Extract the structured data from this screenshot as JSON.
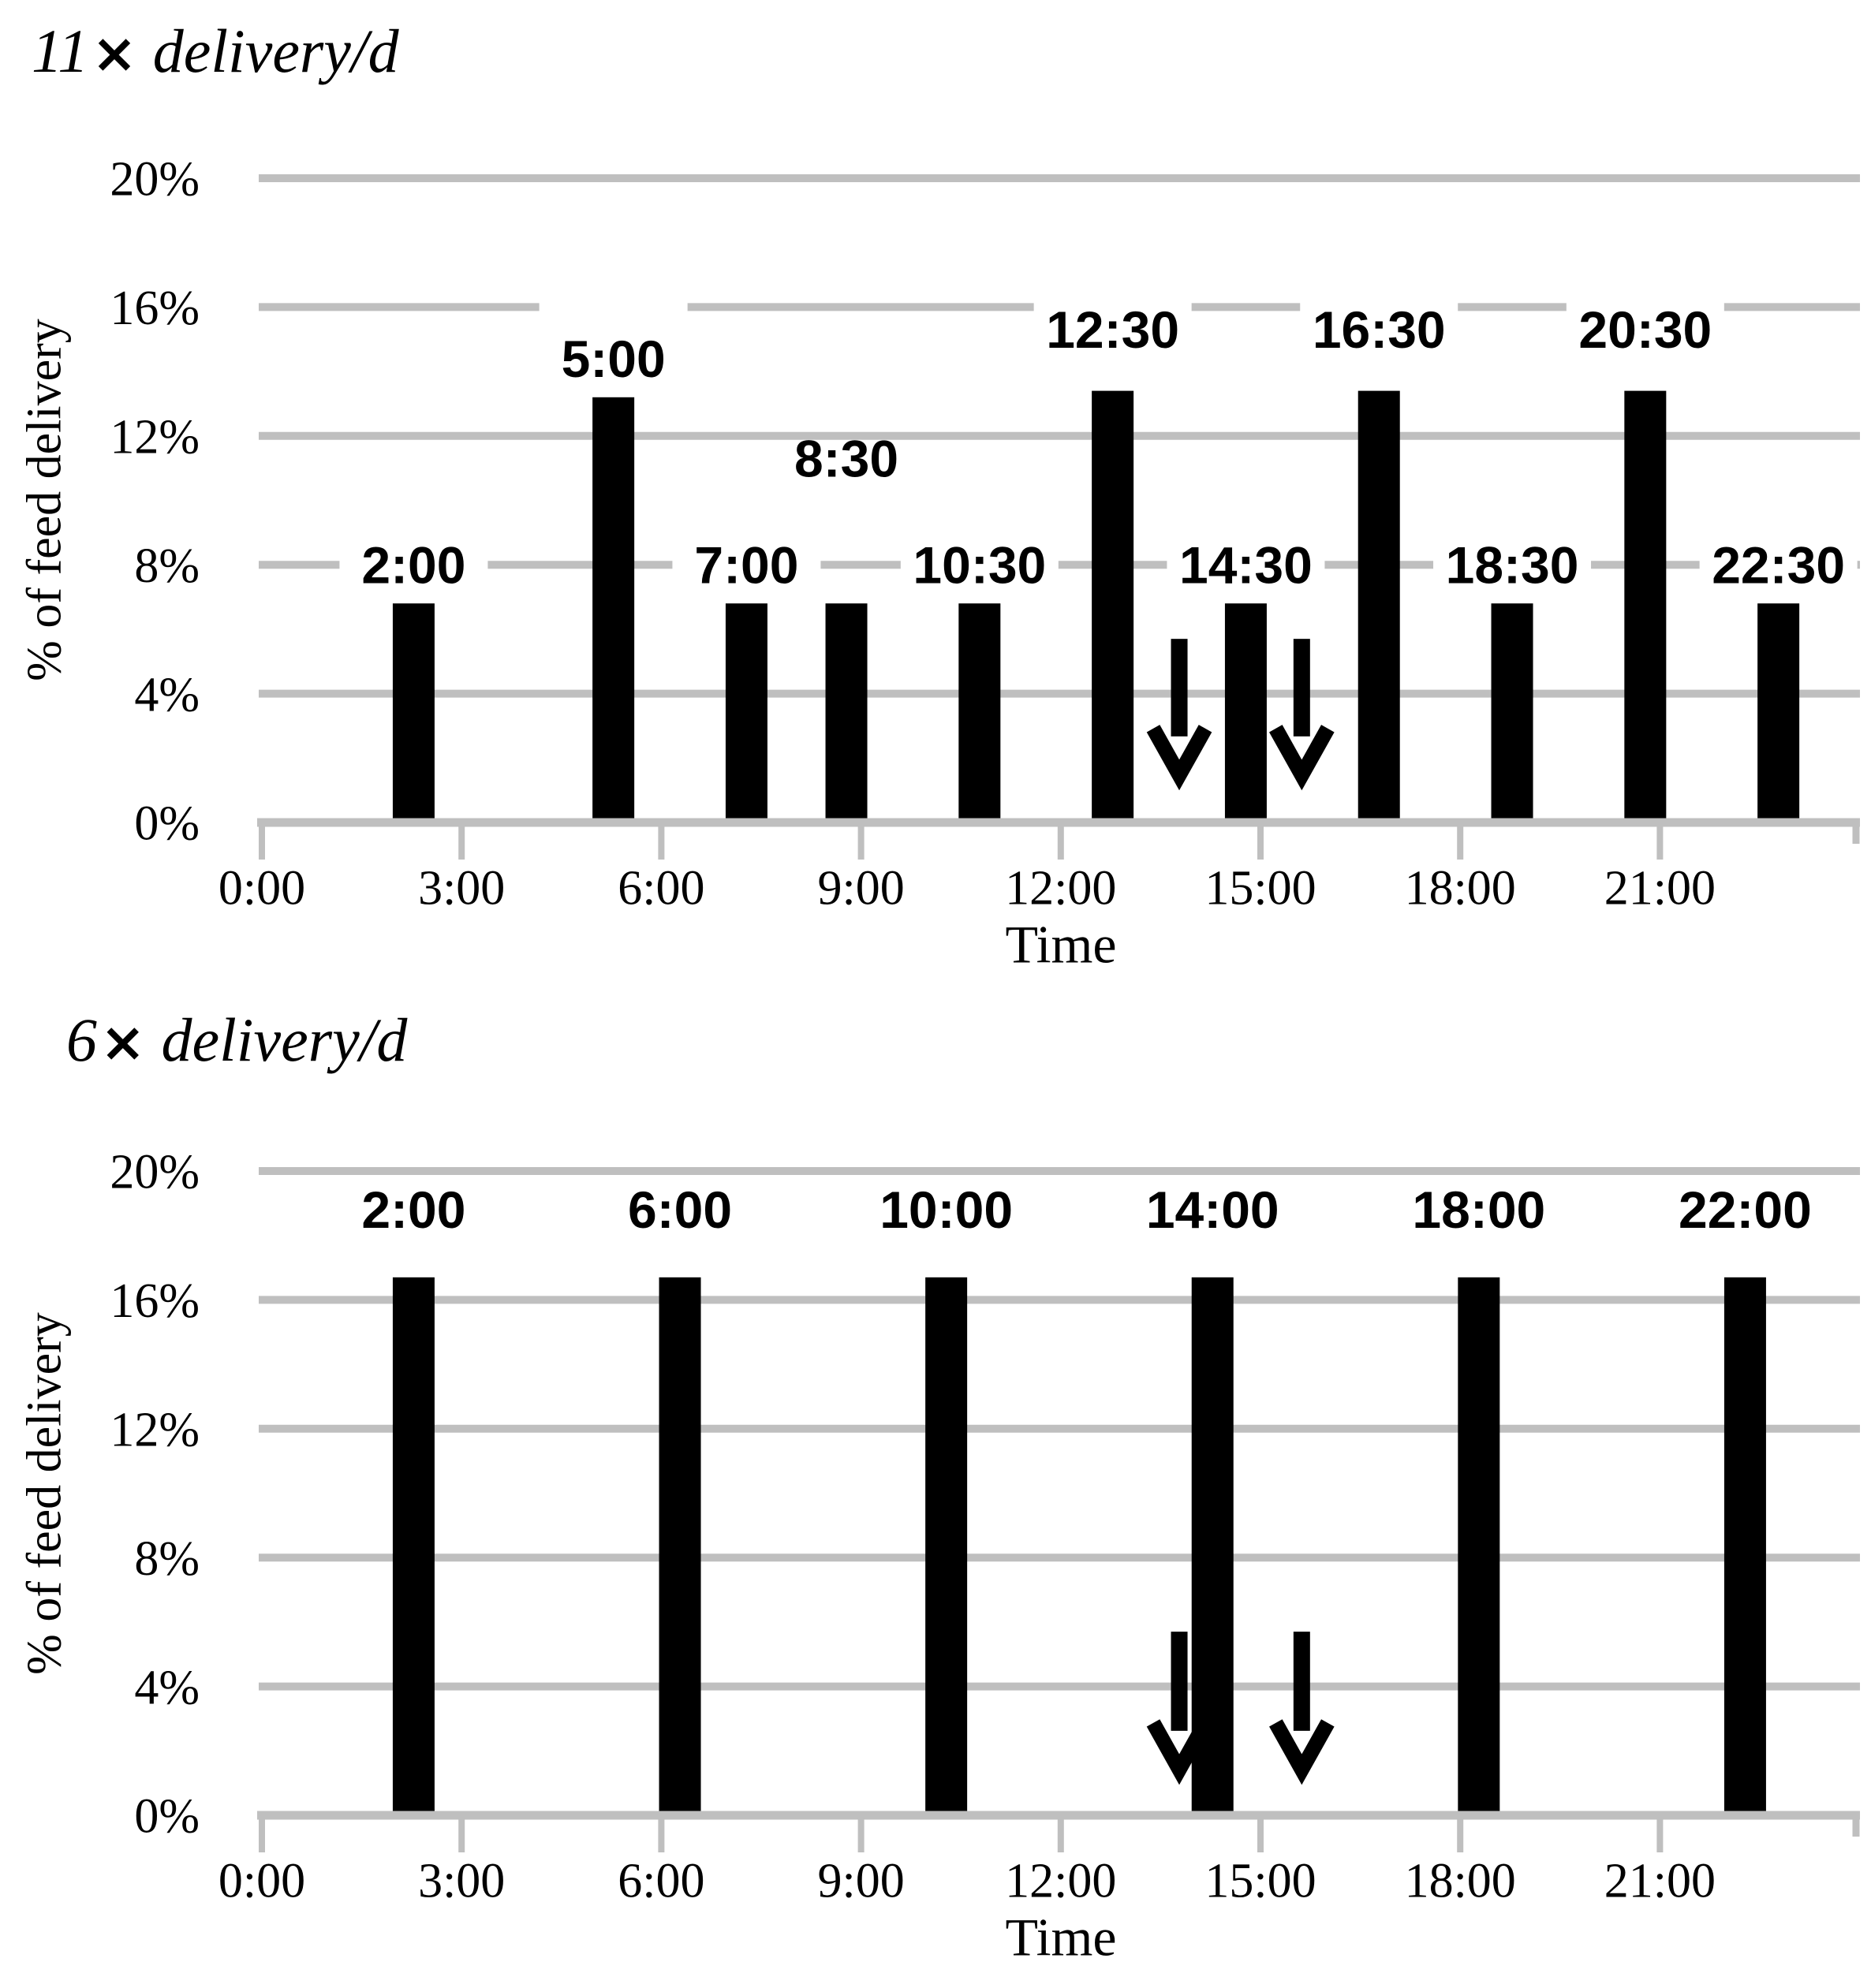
{
  "colors": {
    "bar": "#000000",
    "grid": "#bfbfbf",
    "text": "#000000",
    "background": "#ffffff"
  },
  "chart_data": [
    {
      "type": "bar",
      "title": {
        "number": "11",
        "times": "×",
        "text": "delivery/d"
      },
      "ylabel": "% of feed delivery",
      "xlabel": "Time",
      "ylim": [
        0,
        20
      ],
      "xlim_hours": [
        0,
        24
      ],
      "grid": true,
      "legend": null,
      "ytick_pcts": [
        0,
        4,
        8,
        12,
        16,
        20
      ],
      "ytick_labels": [
        "0%",
        "4%",
        "8%",
        "12%",
        "16%",
        "20%"
      ],
      "xticks": [
        {
          "hour": 0,
          "label": "0:00"
        },
        {
          "hour": 3,
          "label": "3:00"
        },
        {
          "hour": 6,
          "label": "6:00"
        },
        {
          "hour": 9,
          "label": "9:00"
        },
        {
          "hour": 12,
          "label": "12:00"
        },
        {
          "hour": 15,
          "label": "15:00"
        },
        {
          "hour": 18,
          "label": "18:00"
        },
        {
          "hour": 21,
          "label": "21:00"
        }
      ],
      "bars": [
        {
          "label": "2:00",
          "hour": 2,
          "value": 6.8,
          "label_pct": 8.0,
          "gap_line_pct": 8
        },
        {
          "label": "5:00",
          "hour": 5,
          "value": 13.2,
          "label_pct": 14.4,
          "gap_line_pct": 16
        },
        {
          "label": "7:00",
          "hour": 7,
          "value": 6.8,
          "label_pct": 8.0,
          "gap_line_pct": 8
        },
        {
          "label": "8:30",
          "hour": 8.5,
          "value": 6.8,
          "label_pct": 11.3,
          "gap_line_pct": null
        },
        {
          "label": "10:30",
          "hour": 10.5,
          "value": 6.8,
          "label_pct": 8.0,
          "gap_line_pct": 8
        },
        {
          "label": "12:30",
          "hour": 12.5,
          "value": 13.4,
          "label_pct": 15.3,
          "gap_line_pct": 16
        },
        {
          "label": "14:30",
          "hour": 14.5,
          "value": 6.8,
          "label_pct": 8.0,
          "gap_line_pct": 8
        },
        {
          "label": "16:30",
          "hour": 16.5,
          "value": 13.4,
          "label_pct": 15.3,
          "gap_line_pct": 16
        },
        {
          "label": "18:30",
          "hour": 18.5,
          "value": 6.8,
          "label_pct": 8.0,
          "gap_line_pct": 8
        },
        {
          "label": "20:30",
          "hour": 20.5,
          "value": 13.4,
          "label_pct": 15.3,
          "gap_line_pct": 16
        },
        {
          "label": "22:30",
          "hour": 22.5,
          "value": 6.8,
          "label_pct": 8.0,
          "gap_line_pct": 8
        }
      ],
      "arrows": [
        {
          "hour": 13.78,
          "from_pct": 5.7,
          "to_pct": 1.4
        },
        {
          "hour": 15.62,
          "from_pct": 5.7,
          "to_pct": 1.4
        }
      ]
    },
    {
      "type": "bar",
      "title": {
        "number": "6",
        "times": "×",
        "text": "delivery/d"
      },
      "ylabel": "% of feed delivery",
      "xlabel": "Time",
      "ylim": [
        0,
        20
      ],
      "xlim_hours": [
        0,
        24
      ],
      "grid": true,
      "legend": null,
      "ytick_pcts": [
        0,
        4,
        8,
        12,
        16,
        20
      ],
      "ytick_labels": [
        "0%",
        "4%",
        "8%",
        "12%",
        "16%",
        "20%"
      ],
      "xticks": [
        {
          "hour": 0,
          "label": "0:00"
        },
        {
          "hour": 3,
          "label": "3:00"
        },
        {
          "hour": 6,
          "label": "6:00"
        },
        {
          "hour": 9,
          "label": "9:00"
        },
        {
          "hour": 12,
          "label": "12:00"
        },
        {
          "hour": 15,
          "label": "15:00"
        },
        {
          "hour": 18,
          "label": "18:00"
        },
        {
          "hour": 21,
          "label": "21:00"
        }
      ],
      "bars": [
        {
          "label": "2:00",
          "hour": 2,
          "value": 16.7,
          "label_pct": 18.8,
          "gap_line_pct": null
        },
        {
          "label": "6:00",
          "hour": 6,
          "value": 16.7,
          "label_pct": 18.8,
          "gap_line_pct": null
        },
        {
          "label": "10:00",
          "hour": 10,
          "value": 16.7,
          "label_pct": 18.8,
          "gap_line_pct": null
        },
        {
          "label": "14:00",
          "hour": 14,
          "value": 16.7,
          "label_pct": 18.8,
          "gap_line_pct": null
        },
        {
          "label": "18:00",
          "hour": 18,
          "value": 16.7,
          "label_pct": 18.8,
          "gap_line_pct": null
        },
        {
          "label": "22:00",
          "hour": 22,
          "value": 16.7,
          "label_pct": 18.8,
          "gap_line_pct": null
        }
      ],
      "arrows": [
        {
          "hour": 13.78,
          "from_pct": 5.7,
          "to_pct": 1.35
        },
        {
          "hour": 15.62,
          "from_pct": 5.7,
          "to_pct": 1.35
        }
      ]
    }
  ]
}
